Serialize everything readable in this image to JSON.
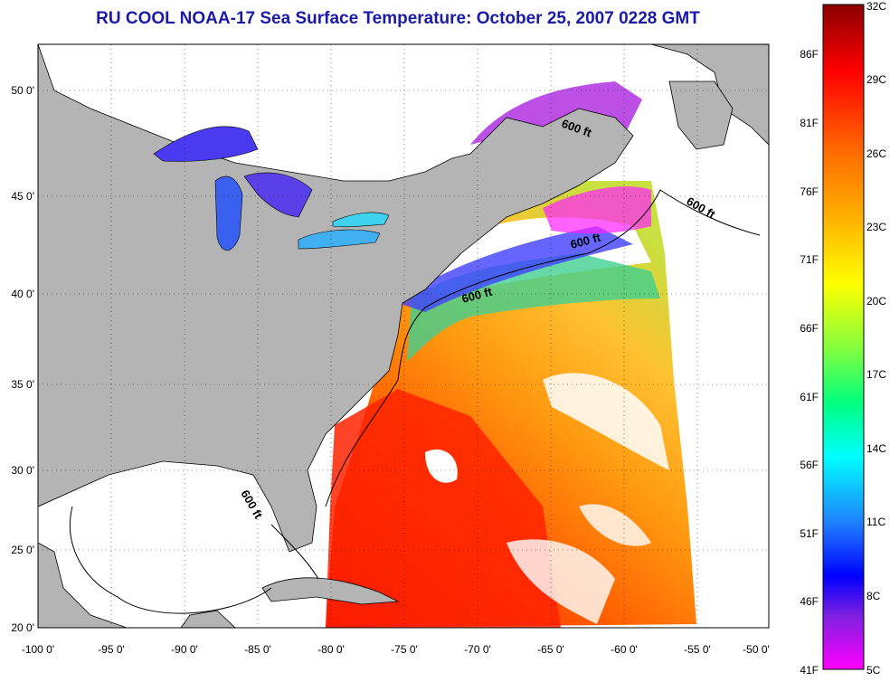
{
  "title": "RU COOL  NOAA-17  Sea Surface Temperature:  October 25, 2007 0228 GMT",
  "map": {
    "lon_ticks": [
      "-100 0'",
      "-95 0'",
      "-90 0'",
      "-85 0'",
      "-80 0'",
      "-75 0'",
      "-70 0'",
      "-65 0'",
      "-60 0'",
      "-55 0'",
      "-50 0'"
    ],
    "lat_ticks": [
      "50 0'",
      "45 0'",
      "40 0'",
      "35 0'",
      "30 0'",
      "25 0'",
      "20 0'"
    ],
    "contour_label": "600 ft",
    "colors": {
      "land": "#b4b4b4",
      "lakes": "#3a4ef0",
      "cloud_mask": "#ffffff",
      "coastline": "#000000"
    }
  },
  "colorbar": {
    "fahrenheit_labels": [
      "86F",
      "81F",
      "76F",
      "71F",
      "66F",
      "61F",
      "56F",
      "51F",
      "46F",
      "41F"
    ],
    "celsius_labels": [
      "32C",
      "29C",
      "26C",
      "23C",
      "20C",
      "17C",
      "14C",
      "11C",
      "8C",
      "5C"
    ],
    "min_celsius": 5,
    "max_celsius": 32,
    "stops": [
      "#8b0000",
      "#ff0000",
      "#ff8c00",
      "#ffd700",
      "#c8ff00",
      "#40ff40",
      "#00ffff",
      "#2090ff",
      "#0000ff",
      "#8020e0",
      "#ff00ff"
    ]
  }
}
